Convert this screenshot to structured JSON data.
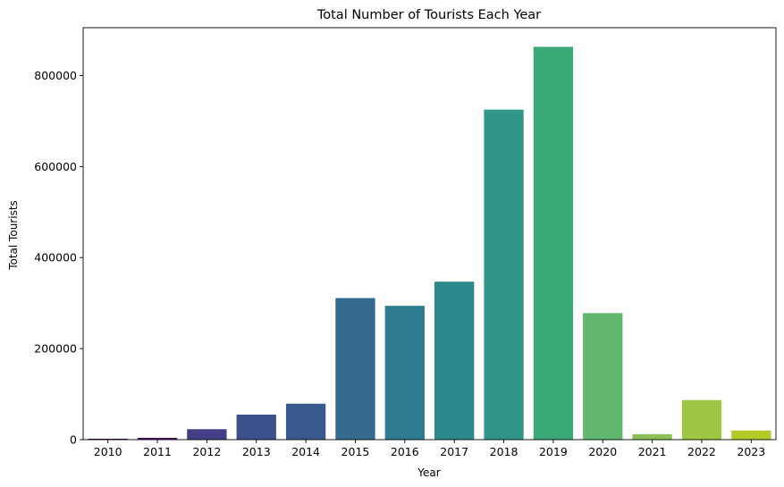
{
  "chart_data": {
    "type": "bar",
    "title": "Total Number of Tourists Each Year",
    "xlabel": "Year",
    "ylabel": "Total Tourists",
    "categories": [
      "2010",
      "2011",
      "2012",
      "2013",
      "2014",
      "2015",
      "2016",
      "2017",
      "2018",
      "2019",
      "2020",
      "2021",
      "2022",
      "2023"
    ],
    "values": [
      2000,
      4000,
      23000,
      55000,
      79000,
      311000,
      294000,
      347000,
      725000,
      863000,
      278000,
      12000,
      87000,
      20000
    ],
    "colors": [
      "#440154",
      "#471365",
      "#433e85",
      "#3a518b",
      "#38598c",
      "#336a8e",
      "#2c7b8e",
      "#2c898b",
      "#31968a",
      "#3aa977",
      "#62b86e",
      "#8cc158",
      "#9dc743",
      "#b4cb27"
    ],
    "ylim": [
      0,
      905000
    ],
    "yticks": [
      0,
      200000,
      400000,
      600000,
      800000
    ],
    "ytick_labels": [
      "0",
      "200000",
      "400000",
      "600000",
      "800000"
    ],
    "grid": false,
    "legend": "none"
  }
}
